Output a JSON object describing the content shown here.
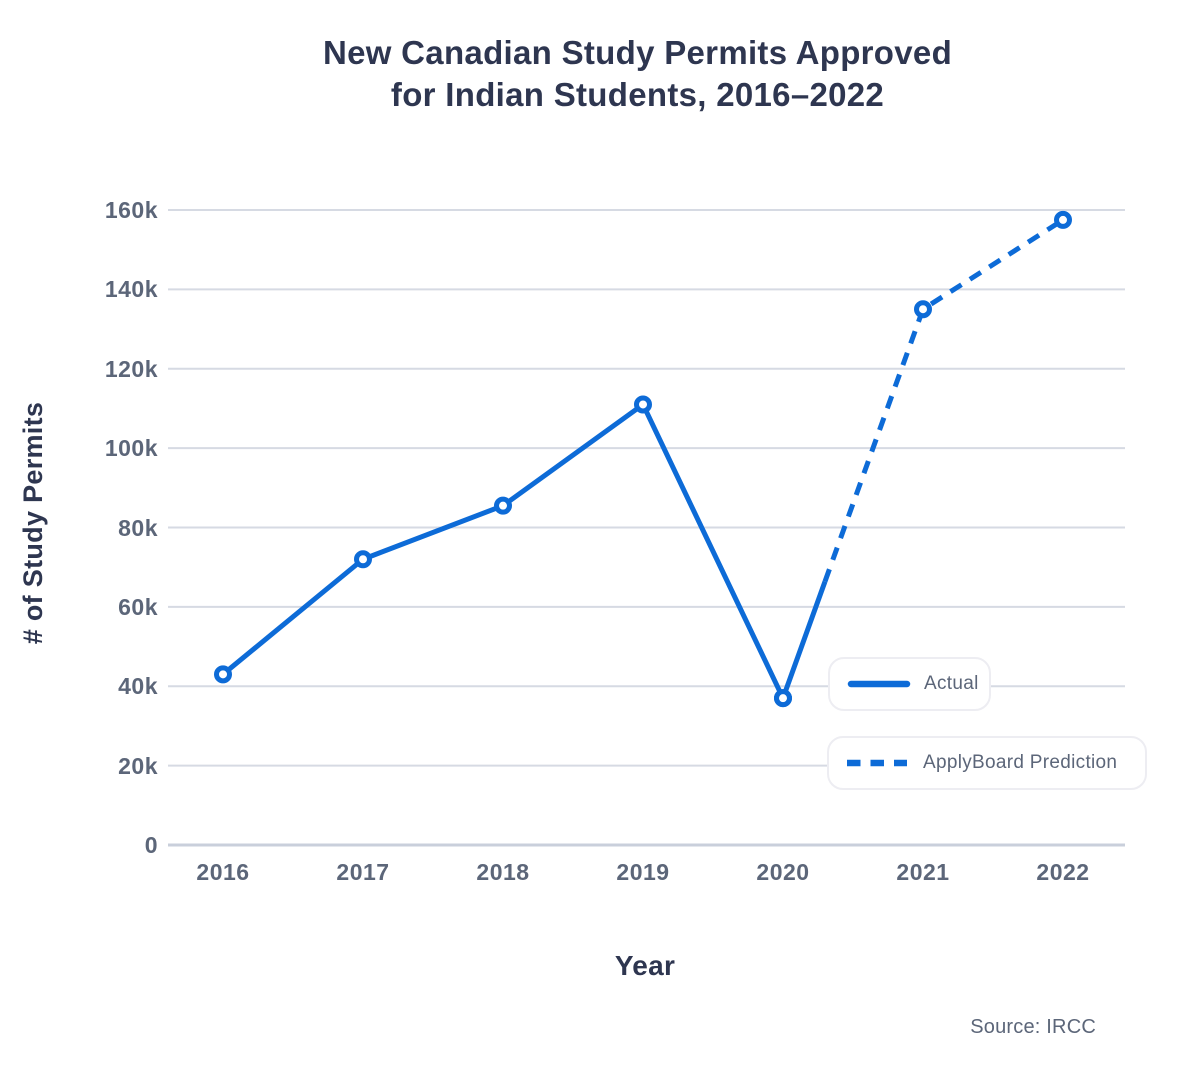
{
  "header": {
    "title_line1": "New Canadian Study Permits Approved",
    "title_line2": "for Indian Students, 2016–2022"
  },
  "chart_data": {
    "type": "line",
    "title": "New Canadian Study Permits Approved for Indian Students, 2016–2022",
    "xlabel": "Year",
    "ylabel": "# of Study Permits",
    "source": "Source: IRCC",
    "x": [
      2016,
      2017,
      2018,
      2019,
      2020,
      2021,
      2022
    ],
    "x_tick_labels": [
      "2016",
      "2017",
      "2018",
      "2019",
      "2020",
      "2021",
      "2022"
    ],
    "ylim": [
      0,
      160000
    ],
    "y_ticks": [
      0,
      20000,
      40000,
      60000,
      80000,
      100000,
      120000,
      140000,
      160000
    ],
    "y_tick_labels": [
      "0",
      "20k",
      "40k",
      "60k",
      "80k",
      "100k",
      "120k",
      "140k",
      "160k"
    ],
    "grid": "horizontal",
    "legend_position": "inside-right",
    "series": [
      {
        "name": "Actual",
        "line_style": "solid",
        "x": [
          2016,
          2017,
          2018,
          2019,
          2020
        ],
        "values": [
          43000,
          72000,
          85500,
          111000,
          37000
        ]
      },
      {
        "name": "ApplyBoard Prediction",
        "line_style": "dashed",
        "x": [
          2020,
          2021,
          2022
        ],
        "values": [
          37000,
          135000,
          157500
        ]
      }
    ]
  },
  "colors": {
    "line_blue": "#0d6bd7",
    "title_navy": "#2e3650",
    "axis_text": "#5c6679",
    "gridline": "#d6dae3",
    "axis_line": "#c9cfdb",
    "legend_border": "#ededf2",
    "background": "#ffffff"
  }
}
